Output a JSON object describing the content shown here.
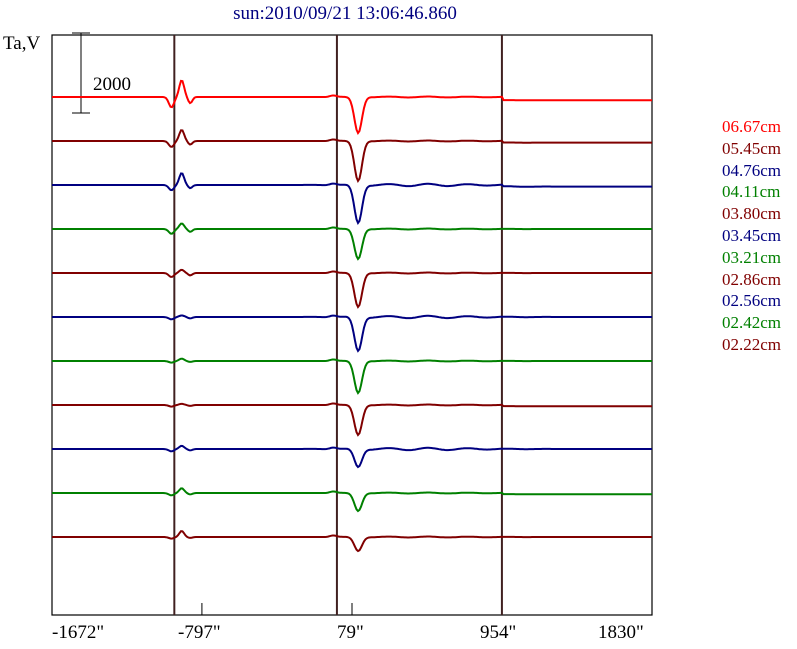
{
  "chart_data": {
    "type": "line",
    "title": "sun:2010/09/21 13:06:46.860",
    "ylabel": "Ta,V",
    "xlabel": "",
    "xlim": [
      -1672,
      1830
    ],
    "ylim": [
      0,
      14500
    ],
    "xticks": [
      "-1672\"",
      "-797\"",
      "79\"",
      "954\"",
      "1830\""
    ],
    "xtick_values": [
      -1672,
      -797,
      79,
      954,
      1830
    ],
    "limb_lines": [
      -958,
      -9,
      954
    ],
    "scale_bar": {
      "label": "2000",
      "value": 2000
    },
    "trace_spacing": 1100,
    "top_baseline": 12950,
    "series": [
      {
        "name": "06.67cm",
        "color": "#ff0000",
        "dip": 900,
        "limb": [
          -260,
          420
        ],
        "step": -80
      },
      {
        "name": "05.45cm",
        "color": "#800000",
        "dip": 1000,
        "limb": [
          -150,
          280
        ],
        "step": -40
      },
      {
        "name": "04.76cm",
        "color": "#000080",
        "dip": 950,
        "limb": [
          -130,
          300
        ],
        "step": -40
      },
      {
        "name": "04.11cm",
        "color": "#008000",
        "dip": 750,
        "limb": [
          -120,
          140
        ],
        "step": 0
      },
      {
        "name": "03.80cm",
        "color": "#800000",
        "dip": 850,
        "limb": [
          -100,
          80
        ],
        "step": 0
      },
      {
        "name": "03.45cm",
        "color": "#000080",
        "dip": 850,
        "limb": [
          -60,
          40
        ],
        "step": 0
      },
      {
        "name": "03.21cm",
        "color": "#008000",
        "dip": 800,
        "limb": [
          -40,
          60
        ],
        "step": 0
      },
      {
        "name": "02.86cm",
        "color": "#800000",
        "dip": 750,
        "limb": [
          -40,
          30
        ],
        "step": -30
      },
      {
        "name": "02.56cm",
        "color": "#000080",
        "dip": 450,
        "limb": [
          -60,
          80
        ],
        "step": 0
      },
      {
        "name": "02.42cm",
        "color": "#008000",
        "dip": 450,
        "limb": [
          -60,
          120
        ],
        "step": -30
      },
      {
        "name": "02.22cm",
        "color": "#800000",
        "dip": 350,
        "limb": [
          -40,
          150
        ],
        "step": 0
      }
    ],
    "dip_center": 115,
    "dip_width": 22
  }
}
